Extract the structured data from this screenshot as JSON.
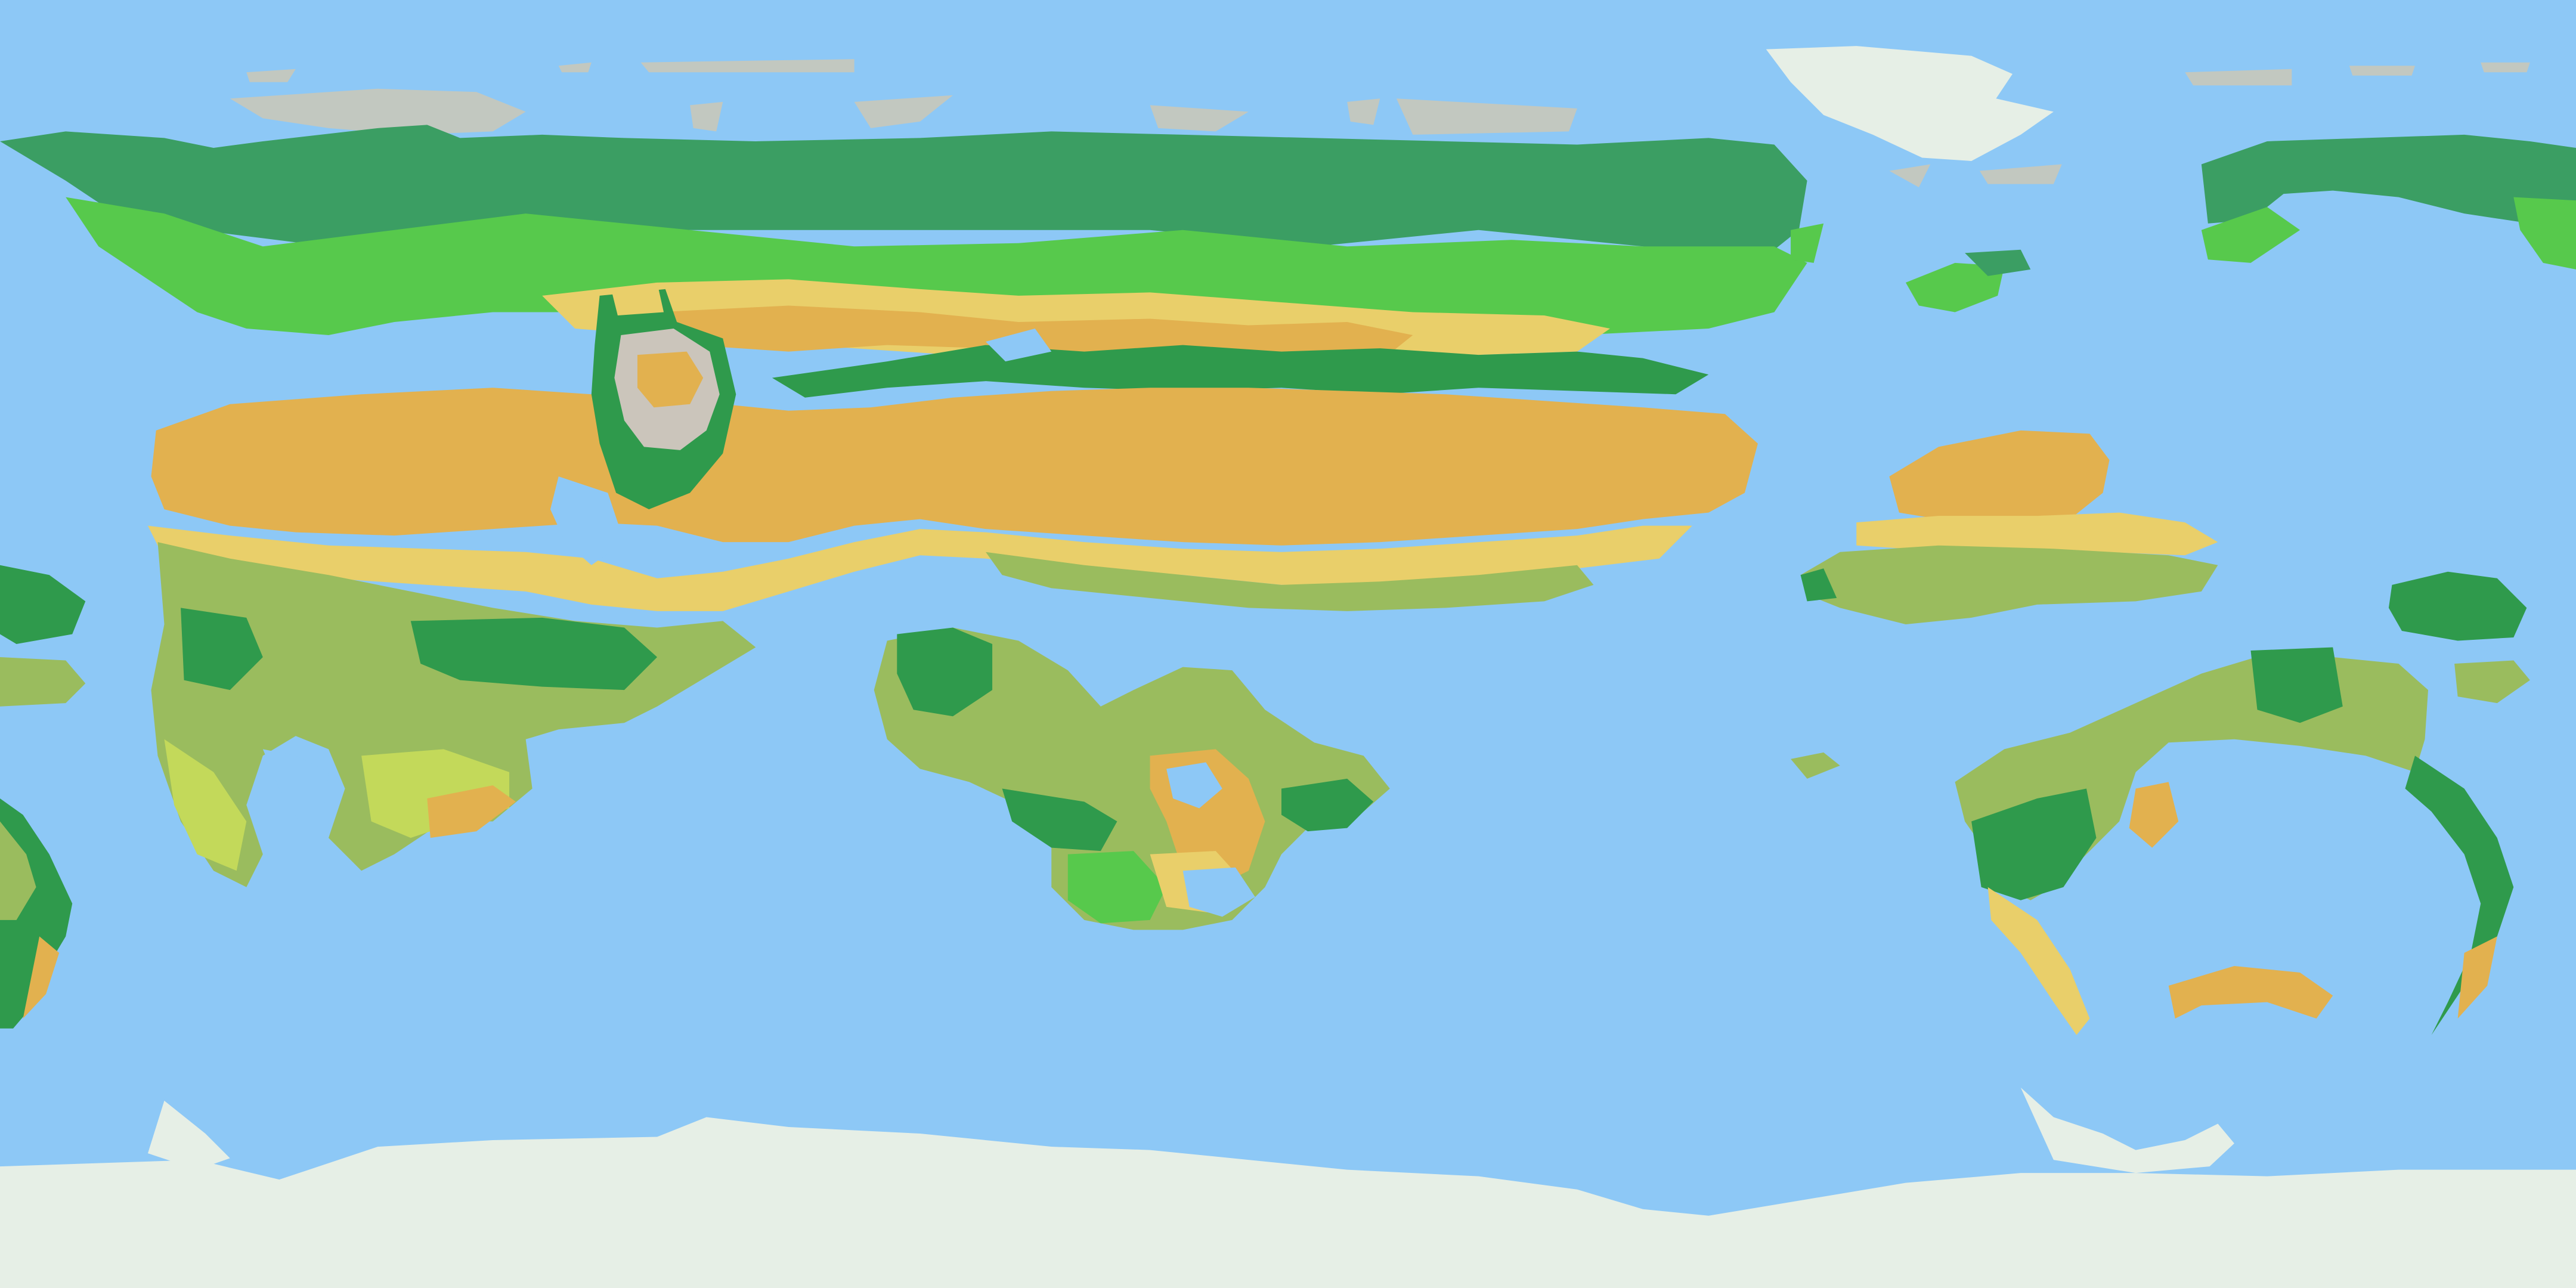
{
  "map": {
    "projection": "equirectangular",
    "palette": {
      "ocean": "#8dc8f6",
      "ice": "#e6efe6",
      "tundra": "#c2c8c0",
      "boreal_forest": "#3b9e63",
      "temperate_forest": "#2f9a4c",
      "grassland": "#57c94c",
      "shrubland": "#9abc5e",
      "savanna": "#c3d95a",
      "steppe": "#e9cf6a",
      "desert": "#e2b14f",
      "mountain": "#cbc5bb"
    }
  }
}
